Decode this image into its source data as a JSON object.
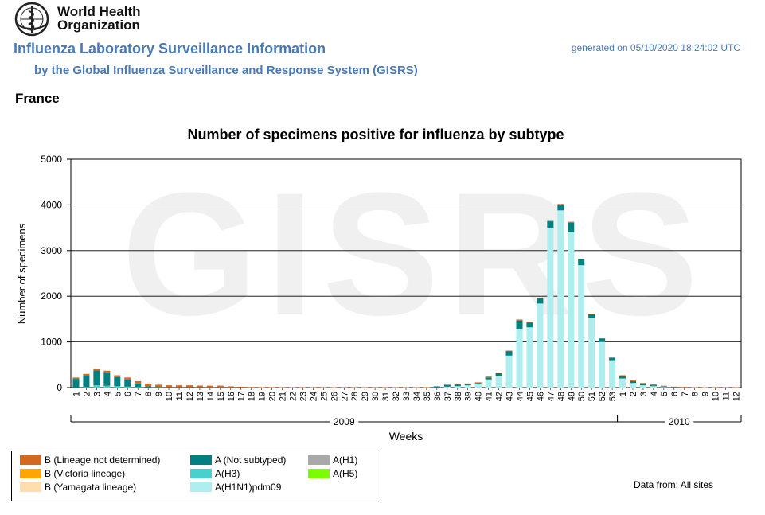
{
  "header": {
    "org_line1": "World Health",
    "org_line2": "Organization",
    "title": "Influenza Laboratory Surveillance Information",
    "subtitle": "by the Global Influenza Surveillance and Response System (GISRS)",
    "generated": "generated on 05/10/2020 18:24:02 UTC",
    "country": "France"
  },
  "watermark": "GISRS",
  "footer": {
    "data_from": "Data from: All sites"
  },
  "colors": {
    "B_lineage_not_determined": "#d2691e",
    "B_victoria": "#ffa500",
    "B_yamagata": "#ffdead",
    "A_not_subtyped": "#008080",
    "A_H3": "#48d1cc",
    "A_H1": "#a9a9a9",
    "A_H5": "#7cfc00",
    "A_H1N1pdm09": "#afeeee"
  },
  "chart_data": {
    "type": "bar",
    "stacked": true,
    "title": "Number of specimens positive for influenza by subtype",
    "xlabel": "Weeks",
    "ylabel": "Number of specimens",
    "ylim": [
      0,
      5000
    ],
    "yticks": [
      0,
      1000,
      2000,
      3000,
      4000,
      5000
    ],
    "grid": true,
    "year_groups": [
      {
        "label": "2009",
        "first_week_index": 0,
        "last_week_index": 52
      },
      {
        "label": "2010",
        "first_week_index": 53,
        "last_week_index": 64
      }
    ],
    "categories": [
      "1",
      "2",
      "3",
      "4",
      "5",
      "6",
      "7",
      "8",
      "9",
      "10",
      "11",
      "12",
      "13",
      "14",
      "15",
      "16",
      "17",
      "18",
      "19",
      "20",
      "21",
      "22",
      "23",
      "24",
      "25",
      "26",
      "27",
      "28",
      "29",
      "30",
      "31",
      "32",
      "33",
      "34",
      "35",
      "36",
      "37",
      "38",
      "39",
      "40",
      "41",
      "42",
      "43",
      "44",
      "45",
      "46",
      "47",
      "48",
      "49",
      "50",
      "51",
      "52",
      "53",
      "1",
      "2",
      "3",
      "4",
      "5",
      "6",
      "7",
      "8",
      "9",
      "10",
      "11",
      "12"
    ],
    "series": [
      {
        "name": "A(H1N1)pdm09",
        "color_key": "A_H1N1pdm09",
        "values": [
          0,
          0,
          0,
          0,
          0,
          0,
          0,
          0,
          0,
          0,
          0,
          0,
          0,
          0,
          0,
          0,
          0,
          0,
          0,
          0,
          0,
          0,
          0,
          0,
          0,
          0,
          0,
          0,
          0,
          0,
          0,
          0,
          0,
          0,
          0,
          5,
          20,
          30,
          50,
          70,
          180,
          260,
          700,
          1290,
          1320,
          1840,
          3500,
          3880,
          3400,
          2680,
          1520,
          1000,
          600,
          200,
          100,
          50,
          30,
          10,
          5,
          0,
          0,
          0,
          0,
          0,
          0
        ]
      },
      {
        "name": "A(H3)",
        "color_key": "A_H3",
        "values": [
          0,
          10,
          50,
          40,
          30,
          20,
          10,
          5,
          2,
          0,
          0,
          0,
          0,
          0,
          0,
          0,
          0,
          0,
          0,
          0,
          0,
          0,
          0,
          0,
          0,
          0,
          0,
          0,
          0,
          0,
          0,
          0,
          0,
          0,
          0,
          0,
          0,
          0,
          0,
          0,
          0,
          0,
          0,
          0,
          0,
          0,
          0,
          0,
          0,
          0,
          0,
          0,
          0,
          0,
          0,
          0,
          0,
          0,
          0,
          0,
          0,
          0,
          0,
          0,
          0
        ]
      },
      {
        "name": "A(Not subtyped)",
        "color_key": "A_not_subtyped",
        "values": [
          190,
          250,
          330,
          290,
          200,
          160,
          80,
          20,
          10,
          5,
          5,
          5,
          3,
          2,
          2,
          2,
          2,
          2,
          2,
          2,
          2,
          2,
          2,
          2,
          2,
          2,
          2,
          2,
          2,
          2,
          2,
          2,
          2,
          2,
          5,
          20,
          40,
          40,
          30,
          30,
          40,
          60,
          100,
          180,
          100,
          120,
          140,
          110,
          210,
          130,
          90,
          70,
          50,
          50,
          40,
          30,
          20,
          10,
          5,
          3,
          3,
          3,
          2,
          2,
          2
        ]
      },
      {
        "name": "A(H1)",
        "color_key": "A_H1",
        "values": [
          0,
          0,
          0,
          0,
          0,
          0,
          0,
          0,
          0,
          0,
          0,
          0,
          0,
          0,
          0,
          0,
          0,
          0,
          0,
          0,
          0,
          0,
          0,
          0,
          0,
          0,
          0,
          0,
          0,
          0,
          0,
          0,
          0,
          0,
          0,
          0,
          0,
          0,
          0,
          0,
          0,
          0,
          0,
          0,
          0,
          0,
          0,
          0,
          0,
          0,
          0,
          0,
          0,
          0,
          0,
          0,
          0,
          0,
          0,
          0,
          0,
          0,
          0,
          0,
          0
        ]
      },
      {
        "name": "A(H5)",
        "color_key": "A_H5",
        "values": [
          0,
          0,
          0,
          0,
          0,
          0,
          0,
          0,
          0,
          0,
          0,
          0,
          0,
          0,
          0,
          0,
          0,
          0,
          0,
          0,
          0,
          0,
          0,
          0,
          0,
          0,
          0,
          0,
          0,
          0,
          0,
          0,
          0,
          0,
          0,
          0,
          0,
          0,
          0,
          0,
          0,
          0,
          0,
          0,
          0,
          0,
          0,
          0,
          0,
          0,
          0,
          0,
          0,
          0,
          0,
          0,
          0,
          0,
          0,
          0,
          0,
          0,
          0,
          0,
          0
        ]
      },
      {
        "name": "B (Yamagata lineage)",
        "color_key": "B_yamagata",
        "values": [
          0,
          0,
          0,
          0,
          0,
          0,
          0,
          0,
          0,
          0,
          0,
          0,
          0,
          0,
          0,
          0,
          0,
          0,
          0,
          0,
          0,
          0,
          0,
          0,
          0,
          0,
          0,
          0,
          0,
          0,
          0,
          0,
          0,
          0,
          0,
          0,
          0,
          0,
          0,
          0,
          0,
          0,
          0,
          0,
          0,
          0,
          0,
          0,
          0,
          0,
          0,
          0,
          0,
          0,
          0,
          0,
          0,
          0,
          0,
          0,
          0,
          0,
          0,
          0,
          0
        ]
      },
      {
        "name": "B (Victoria lineage)",
        "color_key": "B_victoria",
        "values": [
          0,
          0,
          0,
          0,
          0,
          0,
          0,
          0,
          0,
          0,
          0,
          0,
          0,
          0,
          0,
          0,
          0,
          0,
          0,
          0,
          0,
          0,
          0,
          0,
          0,
          0,
          0,
          0,
          0,
          0,
          0,
          0,
          0,
          0,
          0,
          0,
          0,
          0,
          0,
          0,
          0,
          0,
          0,
          0,
          0,
          0,
          0,
          0,
          0,
          0,
          0,
          0,
          0,
          0,
          0,
          0,
          0,
          0,
          0,
          0,
          0,
          0,
          0,
          0,
          0
        ]
      },
      {
        "name": "B (Lineage not determined)",
        "color_key": "B_lineage_not_determined",
        "values": [
          30,
          40,
          30,
          40,
          40,
          40,
          50,
          60,
          50,
          45,
          45,
          45,
          40,
          40,
          40,
          25,
          15,
          10,
          8,
          8,
          5,
          5,
          5,
          5,
          5,
          5,
          5,
          5,
          5,
          5,
          5,
          5,
          5,
          5,
          5,
          5,
          5,
          5,
          10,
          15,
          20,
          10,
          10,
          20,
          20,
          10,
          10,
          30,
          20,
          10,
          10,
          10,
          10,
          20,
          20,
          20,
          20,
          20,
          10,
          10,
          5,
          5,
          5,
          5,
          5
        ]
      }
    ],
    "legend": [
      {
        "label": "B (Lineage not determined)",
        "color_key": "B_lineage_not_determined"
      },
      {
        "label": "B (Victoria lineage)",
        "color_key": "B_victoria"
      },
      {
        "label": "B (Yamagata lineage)",
        "color_key": "B_yamagata"
      },
      {
        "label": "A (Not subtyped)",
        "color_key": "A_not_subtyped"
      },
      {
        "label": "A(H3)",
        "color_key": "A_H3"
      },
      {
        "label": "A(H1N1)pdm09",
        "color_key": "A_H1N1pdm09"
      },
      {
        "label": "A(H1)",
        "color_key": "A_H1"
      },
      {
        "label": "A(H5)",
        "color_key": "A_H5"
      }
    ]
  }
}
